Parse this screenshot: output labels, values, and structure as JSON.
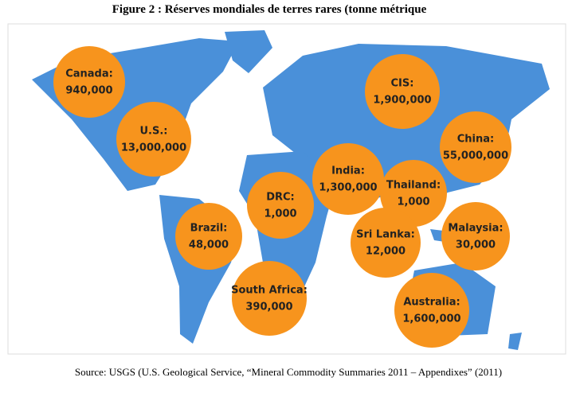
{
  "title": "Figure 2 : Réserves mondiales de terres rares (tonne métrique",
  "source": "Source: USGS (U.S. Geological Service, “Mineral Commodity Summaries 2011 – Appendixes” (2011)",
  "regions": [
    {
      "name": "Canada:",
      "value": "940,000"
    },
    {
      "name": "U.S.:",
      "value": "13,000,000"
    },
    {
      "name": "CIS:",
      "value": "1,900,000"
    },
    {
      "name": "China:",
      "value": "55,000,000"
    },
    {
      "name": "India:",
      "value": "1,300,000"
    },
    {
      "name": "Thailand:",
      "value": "1,000"
    },
    {
      "name": "DRC:",
      "value": "1,000"
    },
    {
      "name": "Brazil:",
      "value": "48,000"
    },
    {
      "name": "Sri Lanka:",
      "value": "12,000"
    },
    {
      "name": "Malaysia:",
      "value": "30,000"
    },
    {
      "name": "South Africa:",
      "value": "390,000"
    },
    {
      "name": "Australia:",
      "value": "1,600,000"
    }
  ]
}
